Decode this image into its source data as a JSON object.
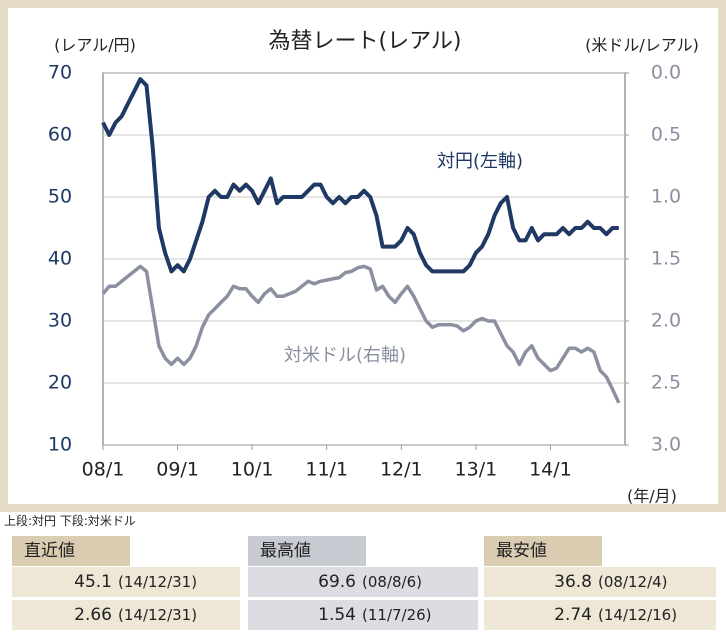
{
  "chart_data": {
    "type": "line",
    "title": "為替レート(レアル)",
    "ylabel": "(レアル/円)",
    "y2label": "(米ドル/レアル)",
    "xlabel": "(年/月)",
    "annotations": [
      "対円(左軸)",
      "対米ドル(右軸)"
    ],
    "x": [
      2008,
      2008.083,
      2008.167,
      2008.25,
      2008.333,
      2008.417,
      2008.5,
      2008.583,
      2008.667,
      2008.75,
      2008.833,
      2008.917,
      2009,
      2009.083,
      2009.167,
      2009.25,
      2009.333,
      2009.417,
      2009.5,
      2009.583,
      2009.667,
      2009.75,
      2009.833,
      2009.917,
      2010,
      2010.083,
      2010.167,
      2010.25,
      2010.333,
      2010.417,
      2010.5,
      2010.583,
      2010.667,
      2010.75,
      2010.833,
      2010.917,
      2011,
      2011.083,
      2011.167,
      2011.25,
      2011.333,
      2011.417,
      2011.5,
      2011.583,
      2011.667,
      2011.75,
      2011.833,
      2011.917,
      2012,
      2012.083,
      2012.167,
      2012.25,
      2012.333,
      2012.417,
      2012.5,
      2012.583,
      2012.667,
      2012.75,
      2012.833,
      2012.917,
      2013,
      2013.083,
      2013.167,
      2013.25,
      2013.333,
      2013.417,
      2013.5,
      2013.583,
      2013.667,
      2013.75,
      2013.833,
      2013.917,
      2014,
      2014.083,
      2014.167,
      2014.25,
      2014.333,
      2014.417,
      2014.5,
      2014.583,
      2014.667,
      2014.75,
      2014.833,
      2014.917
    ],
    "series": [
      {
        "name": "対円",
        "color": "#1f3864",
        "values": [
          62,
          60,
          62,
          63,
          65,
          67,
          69,
          68,
          58,
          45,
          41,
          38,
          39,
          38,
          40,
          43,
          46,
          50,
          51,
          50,
          50,
          52,
          51,
          52,
          51,
          49,
          51,
          53,
          49,
          50,
          50,
          50,
          50,
          51,
          52,
          52,
          50,
          49,
          50,
          49,
          50,
          50,
          51,
          50,
          47,
          42,
          42,
          42,
          43,
          45,
          44,
          41,
          39,
          38,
          38,
          38,
          38,
          38,
          38,
          39,
          41,
          42,
          44,
          47,
          49,
          50,
          45,
          43,
          43,
          45,
          43,
          44,
          44,
          44,
          45,
          44,
          45,
          45,
          46,
          45,
          45,
          44,
          45,
          45
        ]
      },
      {
        "name": "対米ドル",
        "color": "#8a90a0",
        "axis": "y2",
        "values": [
          1.78,
          1.72,
          1.72,
          1.68,
          1.64,
          1.6,
          1.56,
          1.6,
          1.9,
          2.2,
          2.3,
          2.35,
          2.3,
          2.35,
          2.3,
          2.2,
          2.05,
          1.95,
          1.9,
          1.85,
          1.8,
          1.72,
          1.74,
          1.74,
          1.8,
          1.85,
          1.78,
          1.74,
          1.8,
          1.8,
          1.78,
          1.76,
          1.72,
          1.68,
          1.7,
          1.68,
          1.67,
          1.66,
          1.65,
          1.61,
          1.6,
          1.57,
          1.56,
          1.58,
          1.75,
          1.72,
          1.8,
          1.85,
          1.78,
          1.72,
          1.8,
          1.9,
          2.0,
          2.05,
          2.03,
          2.03,
          2.03,
          2.04,
          2.08,
          2.05,
          2.0,
          1.98,
          2.0,
          2.0,
          2.1,
          2.2,
          2.25,
          2.35,
          2.25,
          2.2,
          2.3,
          2.35,
          2.4,
          2.38,
          2.3,
          2.22,
          2.22,
          2.25,
          2.22,
          2.25,
          2.4,
          2.45,
          2.55,
          2.66
        ]
      }
    ],
    "xlim": [
      2008,
      2015
    ],
    "xticks": [
      {
        "value": 2008,
        "label": "08/1"
      },
      {
        "value": 2009,
        "label": "09/1"
      },
      {
        "value": 2010,
        "label": "10/1"
      },
      {
        "value": 2011,
        "label": "11/1"
      },
      {
        "value": 2012,
        "label": "12/1"
      },
      {
        "value": 2013,
        "label": "13/1"
      },
      {
        "value": 2014,
        "label": "14/1"
      }
    ],
    "ylim": [
      10,
      70
    ],
    "yticks": [
      10,
      20,
      30,
      40,
      50,
      60,
      70
    ],
    "y2lim": [
      3,
      0
    ],
    "y2ticks": [
      {
        "value": 0,
        "label": "0.0"
      },
      {
        "value": 0.5,
        "label": "0.5"
      },
      {
        "value": 1,
        "label": "1.0"
      },
      {
        "value": 1.5,
        "label": "1.5"
      },
      {
        "value": 2,
        "label": "2.0"
      },
      {
        "value": 2.5,
        "label": "2.5"
      },
      {
        "value": 3,
        "label": "3.0"
      }
    ],
    "grid": true
  },
  "note": "上段:対円 下段:対米ドル",
  "table": {
    "headers": [
      "直近値",
      "最高値",
      "最安値"
    ],
    "rows": [
      [
        "45.1",
        "(14/12/31)",
        "69.6",
        "(08/8/6)",
        "36.8",
        "(08/12/4)"
      ],
      [
        "2.66",
        "(14/12/31)",
        "1.54",
        "(11/7/26)",
        "2.74",
        "(14/12/16)"
      ]
    ]
  }
}
